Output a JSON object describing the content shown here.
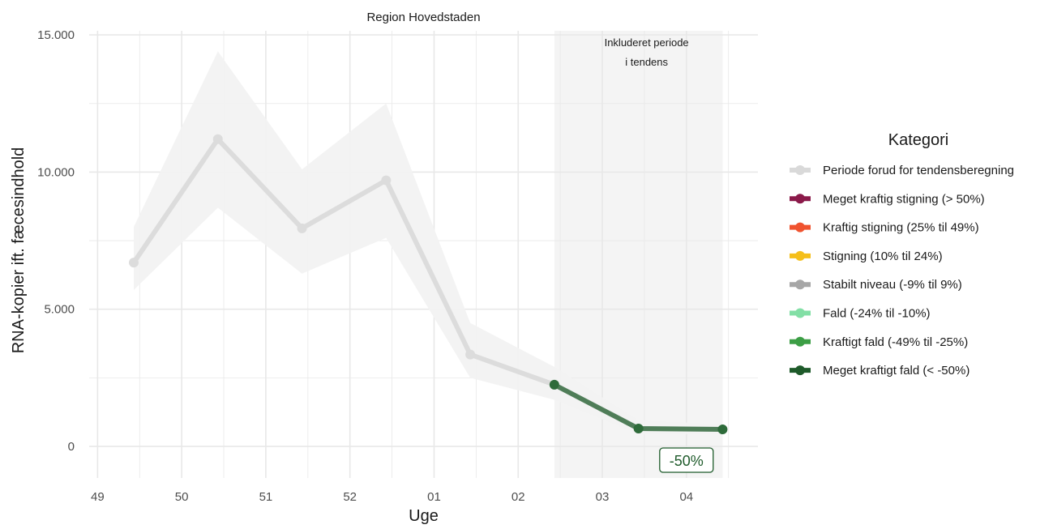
{
  "chart_data": {
    "type": "line",
    "facet_title": "Region Hovedstaden",
    "xlabel": "Uge",
    "ylabel": "RNA-kopier ift. fæcesindhold",
    "x_ticks": [
      "49",
      "50",
      "51",
      "52",
      "01",
      "02",
      "03",
      "04"
    ],
    "x_tick_positions": [
      0,
      1,
      2,
      3,
      4,
      5,
      6,
      7
    ],
    "xlim": [
      -0.1,
      7.85
    ],
    "y_ticks": [
      0,
      5000,
      10000,
      15000
    ],
    "y_tick_labels": [
      "0",
      "5.000",
      "10.000",
      "15.000"
    ],
    "ylim": [
      -1150,
      15150
    ],
    "grid": true,
    "shaded_period": {
      "x_start": 5.43,
      "x_end": 7.43,
      "label_line1": "Inkluderet periode",
      "label_line2": "i tendens"
    },
    "series": [
      {
        "category": "Periode forud for tendensberegning",
        "x": [
          0.43,
          1.43,
          2.43,
          3.43,
          4.43,
          5.43
        ],
        "y": [
          6700,
          11200,
          7950,
          9700,
          3350,
          2250
        ]
      },
      {
        "category": "Meget kraftigt fald (< -50%)",
        "x": [
          5.43,
          6.43,
          7.43
        ],
        "y": [
          2250,
          650,
          620
        ]
      }
    ],
    "confidence_band": {
      "x": [
        0.43,
        1.43,
        2.43,
        3.43,
        4.43,
        5.43,
        6.43,
        7.43
      ],
      "upper": [
        8000,
        14400,
        10100,
        12500,
        4500,
        2900,
        950,
        800
      ],
      "lower": [
        5700,
        8700,
        6300,
        7600,
        2500,
        1700,
        450,
        450
      ]
    },
    "annotation": {
      "text": "-50%",
      "x": 7.0,
      "y": -500
    },
    "legend": {
      "title": "Kategori",
      "placement": "right",
      "items": [
        {
          "label": "Periode forud for tendensberegning",
          "color": "#d9d9d9"
        },
        {
          "label": "Meget kraftig stigning (> 50%)",
          "color": "#8b1a4a"
        },
        {
          "label": "Kraftig stigning (25% til 49%)",
          "color": "#f0532f"
        },
        {
          "label": "Stigning (10% til 24%)",
          "color": "#f5bf1a"
        },
        {
          "label": "Stabilt niveau (-9% til 9%)",
          "color": "#a6a6a6"
        },
        {
          "label": "Fald (-24% til -10%)",
          "color": "#82dfa5"
        },
        {
          "label": "Kraftigt fald (-49% til -25%)",
          "color": "#3c9e45"
        },
        {
          "label": "Meget kraftigt fald (< -50%)",
          "color": "#1e5a2a"
        }
      ]
    },
    "colors": {
      "pre_period_line": "#dcdcdc",
      "trend_line": "#4f7d58",
      "trend_point": "#2e6b3a",
      "band": "#f2f2f2",
      "shade": "#f4f4f4",
      "grid": "#e8e8e8",
      "badge": "#1e5a2a"
    }
  }
}
